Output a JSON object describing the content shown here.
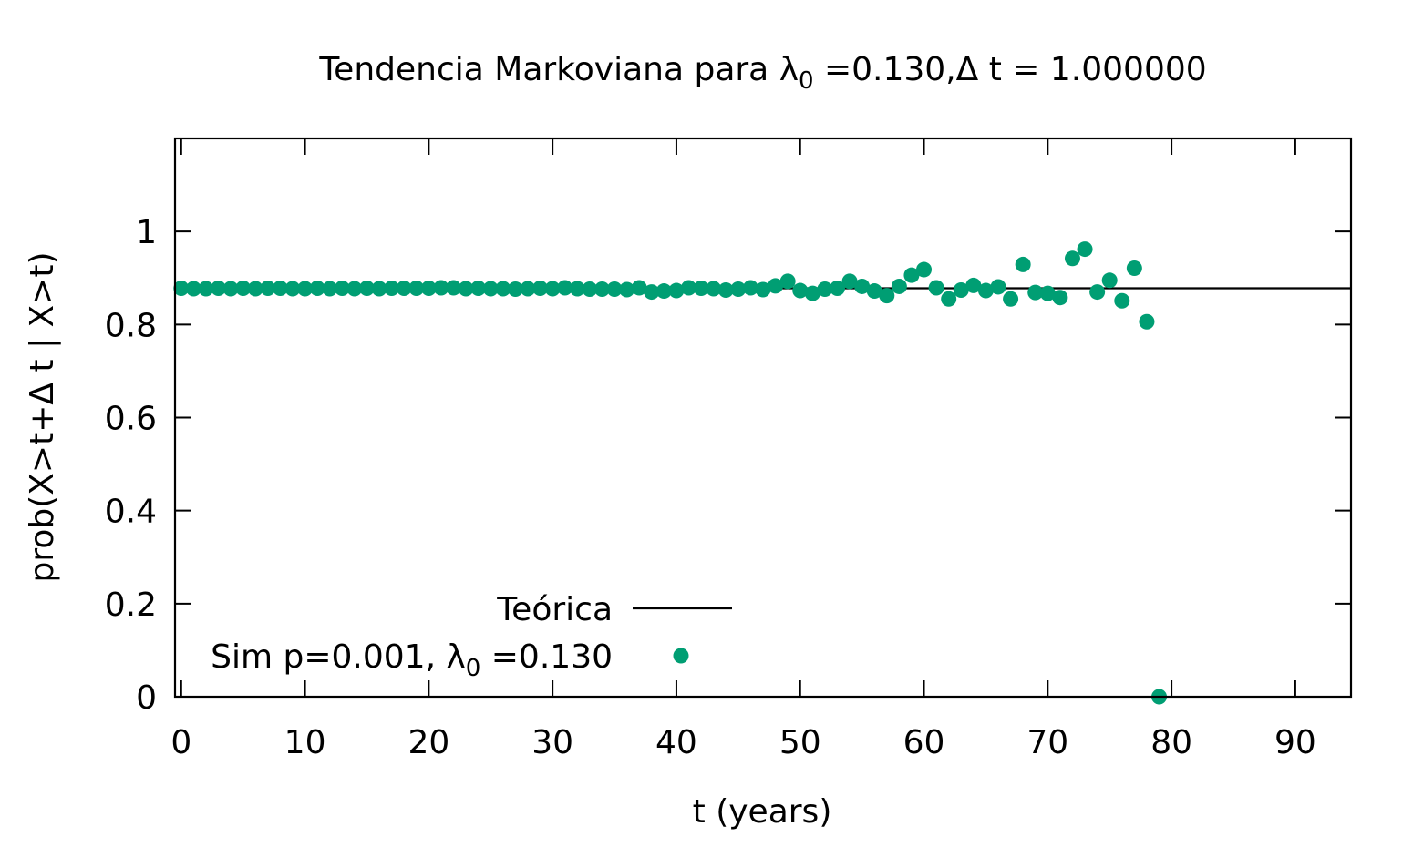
{
  "chart_data": {
    "type": "scatter",
    "title": {
      "prefix": "Tendencia Markoviana para ",
      "lambda": "λ",
      "sub": "0",
      "suffix": " =0.130,Δ t = 1.000000"
    },
    "xlabel": "t (years)",
    "ylabel": "prob(X>t+Δ t | X>t)",
    "xlim": [
      -0.5,
      94.5
    ],
    "ylim": [
      0,
      1.2
    ],
    "xticks": [
      0,
      10,
      20,
      30,
      40,
      50,
      60,
      70,
      80,
      90
    ],
    "yticks": [
      0,
      0.2,
      0.4,
      0.6,
      0.8,
      1
    ],
    "ytick_labels": [
      "0",
      "0.2",
      "0.4",
      "0.6",
      "0.8",
      "1"
    ],
    "grid": false,
    "legend_position": "bottom-center",
    "theory": {
      "name": "Teórica",
      "y": 0.878,
      "x_range": [
        -0.5,
        94.5
      ],
      "color": "#000000"
    },
    "series": [
      {
        "name": {
          "prefix": "Sim p=0.001, ",
          "lambda": "λ",
          "sub": "0",
          "suffix": " =0.130"
        },
        "color": "#009e73",
        "x": [
          0,
          1,
          2,
          3,
          4,
          5,
          6,
          7,
          8,
          9,
          10,
          11,
          12,
          13,
          14,
          15,
          16,
          17,
          18,
          19,
          20,
          21,
          22,
          23,
          24,
          25,
          26,
          27,
          28,
          29,
          30,
          31,
          32,
          33,
          34,
          35,
          36,
          37,
          38,
          39,
          40,
          41,
          42,
          43,
          44,
          45,
          46,
          47,
          48,
          49,
          50,
          51,
          52,
          53,
          54,
          55,
          56,
          57,
          58,
          59,
          60,
          61,
          62,
          63,
          64,
          65,
          66,
          67,
          68,
          69,
          70,
          71,
          72,
          73,
          74,
          75,
          76,
          77,
          78,
          79
        ],
        "y": [
          0.878,
          0.877,
          0.877,
          0.878,
          0.877,
          0.878,
          0.877,
          0.878,
          0.878,
          0.877,
          0.877,
          0.878,
          0.877,
          0.878,
          0.877,
          0.878,
          0.877,
          0.878,
          0.878,
          0.878,
          0.878,
          0.879,
          0.879,
          0.877,
          0.878,
          0.877,
          0.877,
          0.876,
          0.877,
          0.878,
          0.877,
          0.879,
          0.877,
          0.876,
          0.876,
          0.876,
          0.875,
          0.879,
          0.87,
          0.872,
          0.873,
          0.879,
          0.878,
          0.877,
          0.874,
          0.876,
          0.879,
          0.875,
          0.883,
          0.893,
          0.873,
          0.867,
          0.876,
          0.878,
          0.893,
          0.882,
          0.872,
          0.862,
          0.882,
          0.906,
          0.918,
          0.879,
          0.855,
          0.874,
          0.884,
          0.873,
          0.881,
          0.855,
          0.929,
          0.869,
          0.867,
          0.858,
          0.942,
          0.962,
          0.87,
          0.895,
          0.851,
          0.921,
          0.806,
          0.0
        ]
      }
    ]
  }
}
